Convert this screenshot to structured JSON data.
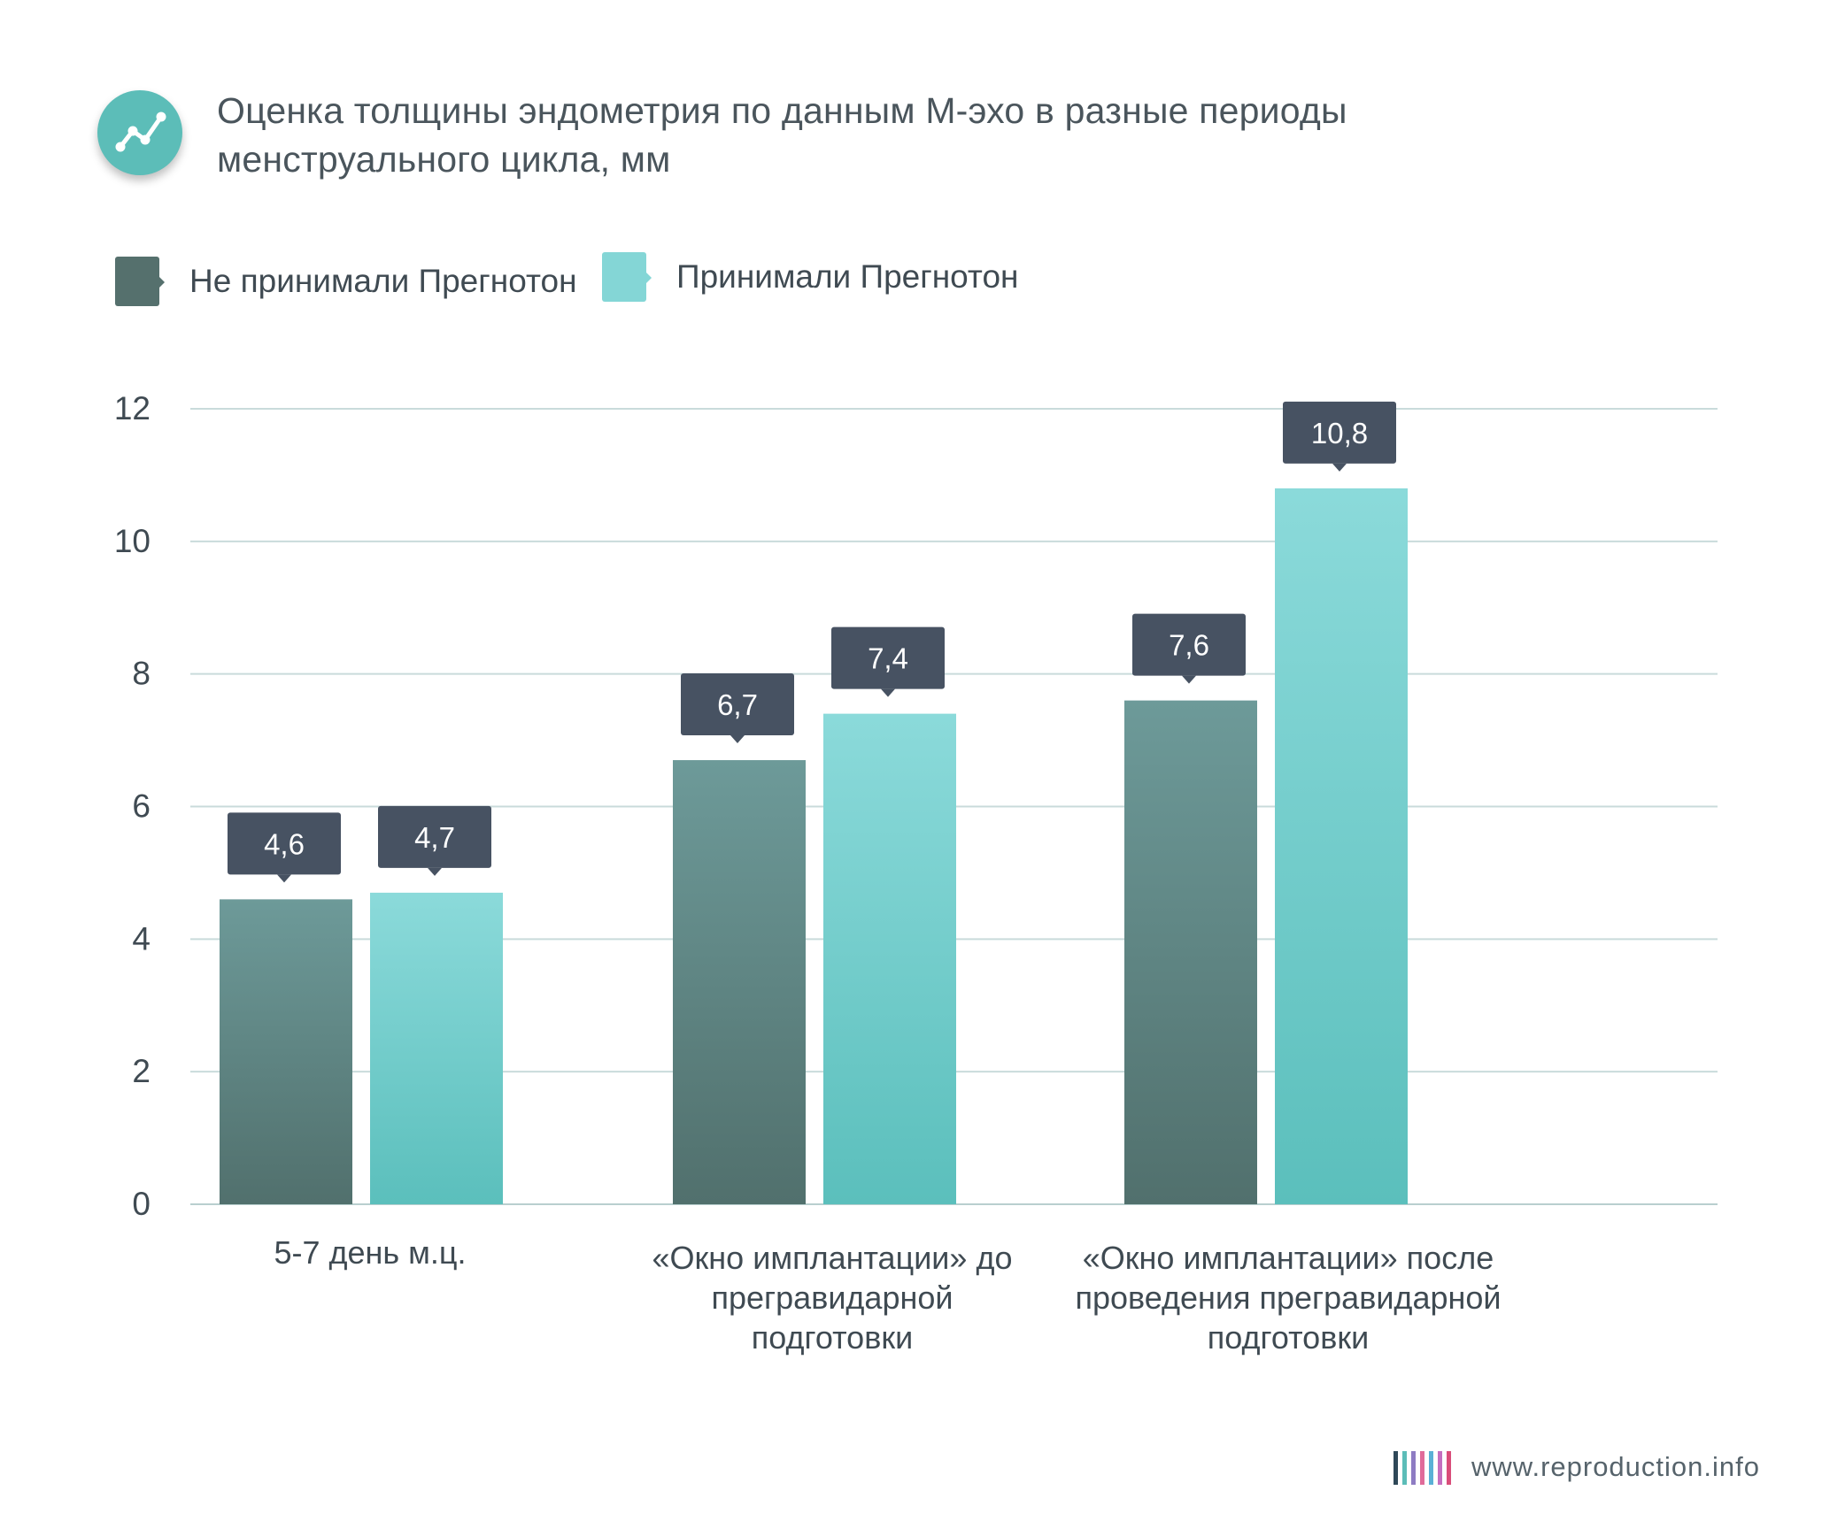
{
  "chart_data": {
    "type": "bar",
    "title": "Оценка толщины эндометрия по данным М-эхо в разные периоды менструального цикла, мм",
    "categories": [
      "5-7 день м.ц.",
      "«Окно имплантации» до прегравидарной подготовки",
      "«Окно имплантации» после проведения прегравидарной подготовки"
    ],
    "category_lines": [
      [
        "5-7 день м.ц."
      ],
      [
        "«Окно имплантации» до",
        "прегравидарной",
        "подготовки"
      ],
      [
        "«Окно имплантации» после",
        "проведения прегравидарной",
        "подготовки"
      ]
    ],
    "series": [
      {
        "name": "Не принимали Прегнотон",
        "values": [
          4.6,
          6.7,
          7.6
        ],
        "labels": [
          "4,6",
          "6,7",
          "7,6"
        ],
        "color": "#55706d"
      },
      {
        "name": "Принимали Прегнотон",
        "values": [
          4.7,
          7.4,
          10.8
        ],
        "labels": [
          "4,7",
          "7,4",
          "10,8"
        ],
        "color": "#84d6d6"
      }
    ],
    "ylim": [
      0,
      12
    ],
    "yticks": [
      0,
      2,
      4,
      6,
      8,
      10,
      12
    ],
    "grid": true,
    "legend": "top-left",
    "xlabel": "",
    "ylabel": ""
  },
  "colors": {
    "accent": "#5cbdb8",
    "label_box": "#475262",
    "grid": "#c9dbdb"
  },
  "icons": {
    "title_icon": "trend-line-icon"
  },
  "footer": {
    "text": "www.reproduction.info"
  }
}
